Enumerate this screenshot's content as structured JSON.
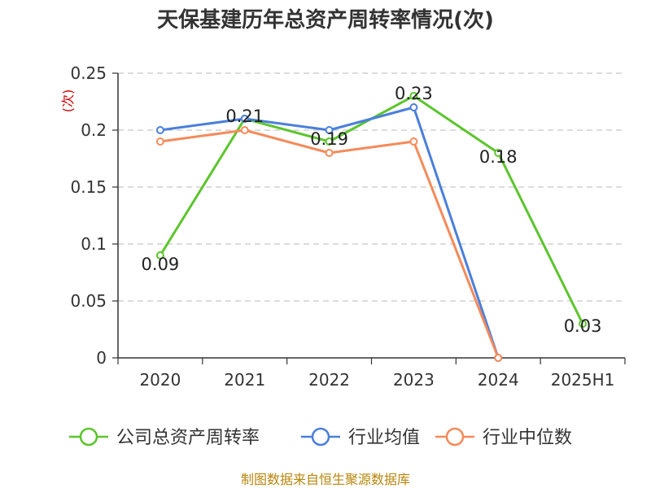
{
  "chart_data": {
    "type": "line",
    "title": "天保基建历年总资产周转率情况(次)",
    "ylabel": "(次)",
    "xlabel": "",
    "categories": [
      "2020",
      "2021",
      "2022",
      "2023",
      "2024",
      "2025H1"
    ],
    "ylim": [
      0,
      0.25
    ],
    "yticks": [
      0,
      0.05,
      0.1,
      0.15,
      0.2,
      0.25
    ],
    "ytick_labels": [
      "0",
      "0.05",
      "0.1",
      "0.15",
      "0.2",
      "0.25"
    ],
    "grid": true,
    "legend_position": "bottom",
    "series": [
      {
        "name": "公司总资产周转率",
        "color": "#5cc52d",
        "values": [
          0.09,
          0.21,
          0.19,
          0.23,
          0.18,
          0.03
        ],
        "show_labels": true
      },
      {
        "name": "行业均值",
        "color": "#4a7fdc",
        "values": [
          0.2,
          0.21,
          0.2,
          0.22,
          0.0,
          null
        ],
        "show_labels": false
      },
      {
        "name": "行业中位数",
        "color": "#f58a5a",
        "values": [
          0.19,
          0.2,
          0.18,
          0.19,
          0.0,
          null
        ],
        "show_labels": false
      }
    ],
    "data_labels": [
      "0.09",
      "0.21",
      "0.19",
      "0.23",
      "0.18",
      "0.03"
    ],
    "source": "制图数据来自恒生聚源数据库",
    "ylabel_color": "#cc0000",
    "source_color": "#b8860b"
  }
}
